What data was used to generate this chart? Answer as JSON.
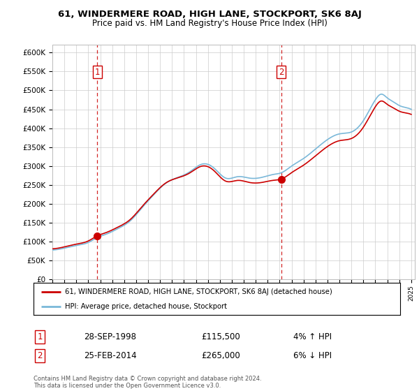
{
  "title": "61, WINDERMERE ROAD, HIGH LANE, STOCKPORT, SK6 8AJ",
  "subtitle": "Price paid vs. HM Land Registry's House Price Index (HPI)",
  "ylabel_ticks": [
    "£0",
    "£50K",
    "£100K",
    "£150K",
    "£200K",
    "£250K",
    "£300K",
    "£350K",
    "£400K",
    "£450K",
    "£500K",
    "£550K",
    "£600K"
  ],
  "ytick_values": [
    0,
    50000,
    100000,
    150000,
    200000,
    250000,
    300000,
    350000,
    400000,
    450000,
    500000,
    550000,
    600000
  ],
  "ylim": [
    0,
    620000
  ],
  "sale1_date": 1998.75,
  "sale1_price": 115500,
  "sale1_label": "1",
  "sale2_date": 2014.12,
  "sale2_price": 265000,
  "sale2_label": "2",
  "hpi_color": "#7ab8d9",
  "price_color": "#cc0000",
  "vline_color": "#cc0000",
  "background_color": "#ffffff",
  "grid_color": "#cccccc",
  "legend_line1": "61, WINDERMERE ROAD, HIGH LANE, STOCKPORT, SK6 8AJ (detached house)",
  "legend_line2": "HPI: Average price, detached house, Stockport",
  "annotation1_date": "28-SEP-1998",
  "annotation1_price": "£115,500",
  "annotation1_hpi": "4% ↑ HPI",
  "annotation2_date": "25-FEB-2014",
  "annotation2_price": "£265,000",
  "annotation2_hpi": "6% ↓ HPI",
  "footer": "Contains HM Land Registry data © Crown copyright and database right 2024.\nThis data is licensed under the Open Government Licence v3.0."
}
